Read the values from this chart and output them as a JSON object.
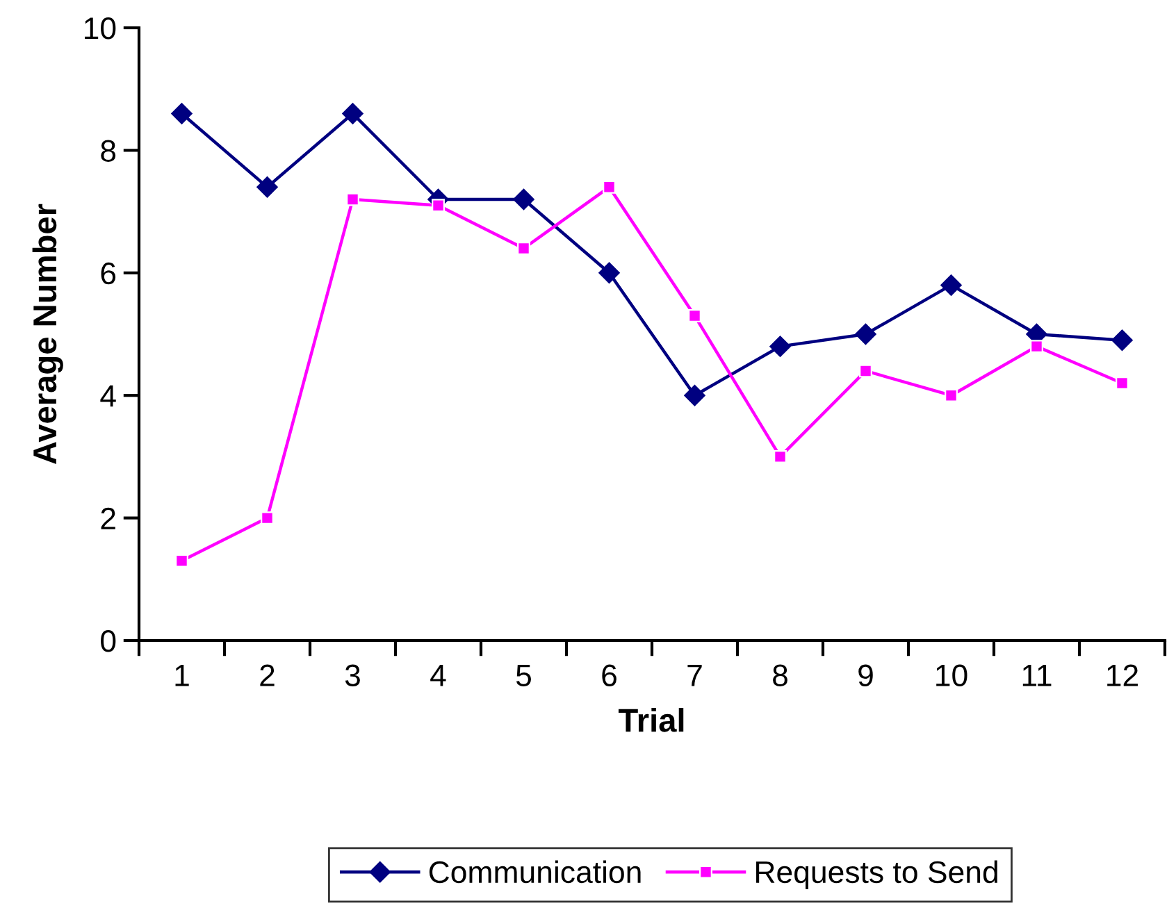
{
  "chart_data": {
    "type": "line",
    "xlabel": "Trial",
    "ylabel": "Average Number",
    "categories": [
      "1",
      "2",
      "3",
      "4",
      "5",
      "6",
      "7",
      "8",
      "9",
      "10",
      "11",
      "12"
    ],
    "series": [
      {
        "name": "Communication",
        "color": "#000080",
        "marker": "diamond",
        "values": [
          8.6,
          7.4,
          8.6,
          7.2,
          7.2,
          6.0,
          4.0,
          4.8,
          5.0,
          5.8,
          5.0,
          4.9
        ]
      },
      {
        "name": "Requests to Send",
        "color": "#ff00ff",
        "marker": "square",
        "values": [
          1.3,
          2.0,
          7.2,
          7.1,
          6.4,
          7.4,
          5.3,
          3.0,
          4.4,
          4.0,
          4.8,
          4.2
        ]
      }
    ],
    "ylim": [
      0,
      10
    ],
    "yticks": [
      0,
      2,
      4,
      6,
      8,
      10
    ],
    "grid": false,
    "legend": "bottom",
    "line_style": "solid"
  }
}
